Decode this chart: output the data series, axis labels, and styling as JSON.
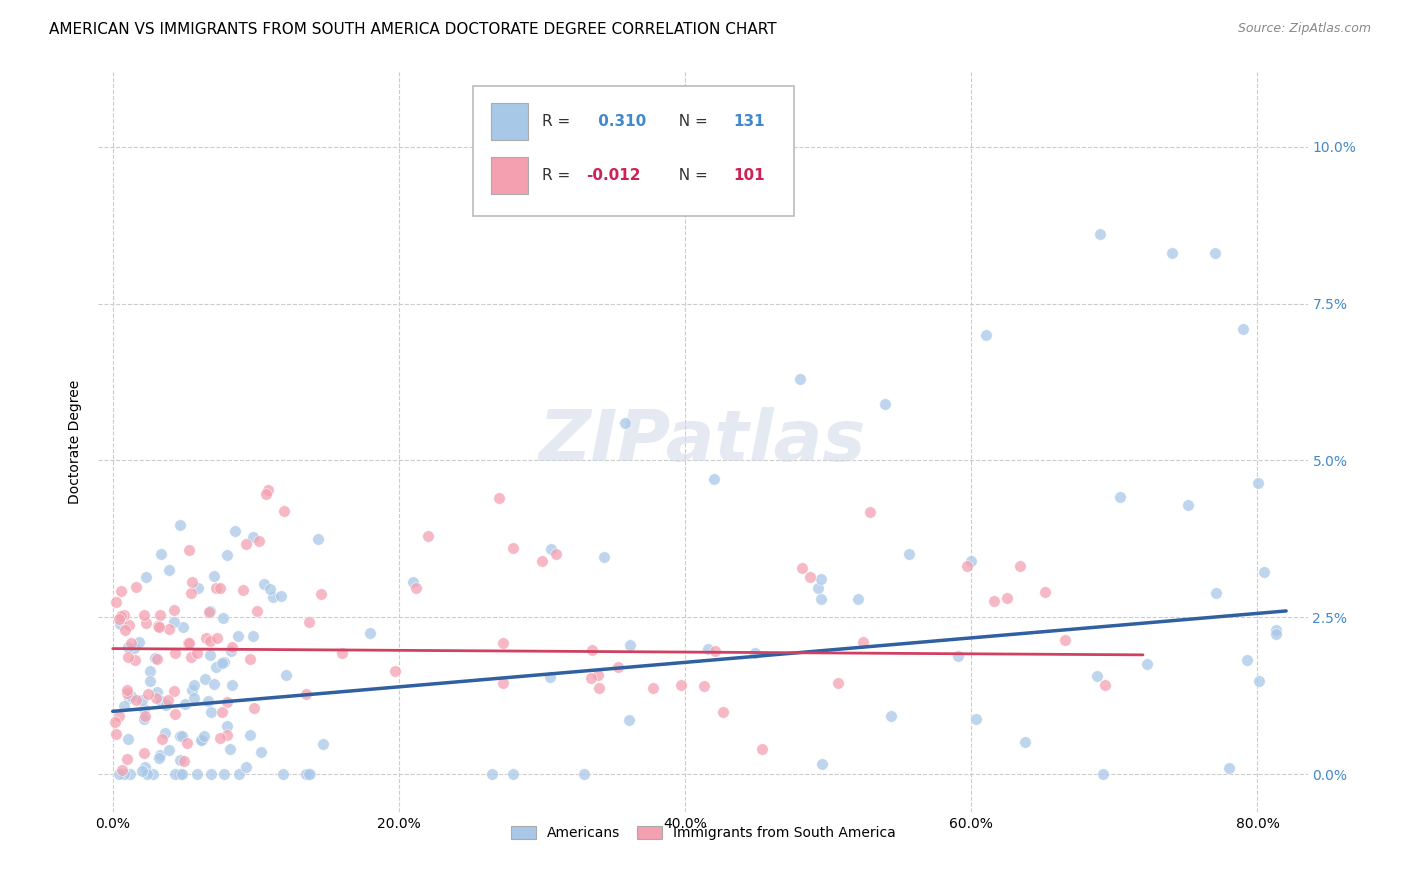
{
  "title": "AMERICAN VS IMMIGRANTS FROM SOUTH AMERICA DOCTORATE DEGREE CORRELATION CHART",
  "source": "Source: ZipAtlas.com",
  "ylabel": "Doctorate Degree",
  "xlabel_ticks": [
    "0.0%",
    "20.0%",
    "40.0%",
    "60.0%",
    "80.0%"
  ],
  "xlabel_vals": [
    0.0,
    0.2,
    0.4,
    0.6,
    0.8
  ],
  "ylabel_ticks": [
    "0.0%",
    "2.5%",
    "5.0%",
    "7.5%",
    "10.0%"
  ],
  "ylabel_vals": [
    0.0,
    0.025,
    0.05,
    0.075,
    0.1
  ],
  "xlim": [
    -0.01,
    0.835
  ],
  "ylim": [
    -0.006,
    0.112
  ],
  "americans_R": 0.31,
  "americans_N": 131,
  "immigrants_R": -0.012,
  "immigrants_N": 101,
  "blue_color": "#a8c8e8",
  "pink_color": "#f4a0b0",
  "blue_line_color": "#3060a0",
  "pink_line_color": "#d04060",
  "background_color": "#ffffff",
  "grid_color": "#cccccc",
  "watermark": "ZIPatlas",
  "title_fontsize": 11,
  "axis_label_fontsize": 10,
  "tick_fontsize": 10,
  "legend_fontsize": 10,
  "source_fontsize": 9,
  "right_tick_color": "#4488cc",
  "seed": 42,
  "blue_line_x": [
    0.0,
    0.82
  ],
  "blue_line_y": [
    0.01,
    0.026
  ],
  "pink_line_x": [
    0.0,
    0.72
  ],
  "pink_line_y": [
    0.02,
    0.019
  ]
}
